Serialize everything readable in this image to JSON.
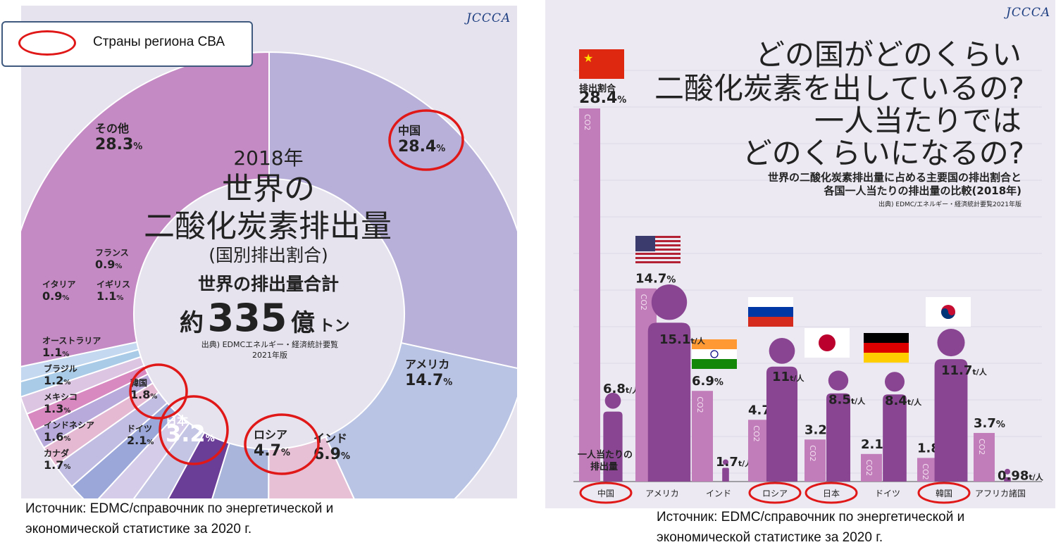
{
  "legend": {
    "label": "Страны региона СВА",
    "marker_color": "#e01818"
  },
  "source_left": [
    "Источник: EDMC/справочник по энергетической и",
    "экономической статистике за 2020 г."
  ],
  "source_right": [
    "Источник: EDMC/справочник по энергетической и",
    "экономической статистике за 2020 г."
  ],
  "logo": "JCCCA",
  "chart_data": [
    {
      "type": "pie",
      "title_lines": [
        "2018年",
        "世界の",
        "二酸化炭素排出量",
        "(国別排出割合)",
        "世界の排出量合計"
      ],
      "total": "約335億トン",
      "total_prefix": "約",
      "total_number": "335",
      "total_unit": "億",
      "total_unit_small": "トン",
      "source_note": [
        "出典) EDMCエネルギー・経済統計要覧",
        "2021年版"
      ],
      "slices": [
        {
          "name": "中国",
          "value": 28.4,
          "color": "#b8b0d9",
          "highlight": true
        },
        {
          "name": "アメリカ",
          "value": 14.7,
          "color": "#b9c3e4",
          "highlight": false
        },
        {
          "name": "インド",
          "value": 6.9,
          "color": "#e8c0d5",
          "highlight": false
        },
        {
          "name": "ロシア",
          "value": 4.7,
          "color": "#a9b5db",
          "highlight": true
        },
        {
          "name": "日本",
          "value": 3.2,
          "color": "#6a3e96",
          "highlight": true
        },
        {
          "name": "ドイツ",
          "value": 2.1,
          "color": "#c4c4e4",
          "highlight": false
        },
        {
          "name": "韓国",
          "value": 1.8,
          "color": "#d5cce9",
          "highlight": true
        },
        {
          "name": "カナダ",
          "value": 1.7,
          "color": "#9aa7d8",
          "highlight": false
        },
        {
          "name": "インドネシア",
          "value": 1.6,
          "color": "#c1bce2",
          "highlight": false
        },
        {
          "name": "メキシコ",
          "value": 1.3,
          "color": "#e5b9d2",
          "highlight": false
        },
        {
          "name": "ブラジル",
          "value": 1.2,
          "color": "#b8abdc",
          "highlight": false
        },
        {
          "name": "オーストラリア",
          "value": 1.1,
          "color": "#d889c0",
          "highlight": false
        },
        {
          "name": "イギリス",
          "value": 1.1,
          "color": "#dcc5e2",
          "highlight": false
        },
        {
          "name": "イタリア",
          "value": 0.9,
          "color": "#a9cbe8",
          "highlight": false
        },
        {
          "name": "フランス",
          "value": 0.9,
          "color": "#c4d8ef",
          "highlight": false
        },
        {
          "name": "その他",
          "value": 28.3,
          "color": "#c48ac3",
          "highlight": false
        }
      ],
      "unit": "%"
    },
    {
      "type": "bar",
      "title_lines": [
        "どの国がどのくらい",
        "二酸化炭素を出しているの?",
        "一人当たりでは",
        "どのくらいになるの?"
      ],
      "subtitle_lines": [
        "世界の二酸化炭素排出量に占める主要国の排出割合と",
        "各国一人当たりの排出量の比較(2018年)"
      ],
      "source_note": "出典) EDMC/エネルギー・経済統計要覧2021年版",
      "share_label": "排出割合",
      "per_capita_label": [
        "一人当たりの",
        "排出量"
      ],
      "bar_tag": "CO2",
      "share_unit": "%",
      "per_capita_unit": "t/人",
      "categories": [
        "中国",
        "アメリカ",
        "インド",
        "ロシア",
        "日本",
        "ドイツ",
        "韓国",
        "アフリカ諸国"
      ],
      "highlighted": [
        "中国",
        "ロシア",
        "日本",
        "韓国"
      ],
      "series": [
        {
          "name": "排出割合",
          "unit": "%",
          "values": [
            28.4,
            14.7,
            6.9,
            4.7,
            3.2,
            2.1,
            1.8,
            3.7
          ]
        },
        {
          "name": "一人当たりの排出量",
          "unit": "t/人",
          "values": [
            6.8,
            15.1,
            1.7,
            11.0,
            8.5,
            8.4,
            11.7,
            0.98
          ]
        }
      ],
      "colors": {
        "share_bar": "#c17db9",
        "person": "#8a4592"
      }
    }
  ]
}
